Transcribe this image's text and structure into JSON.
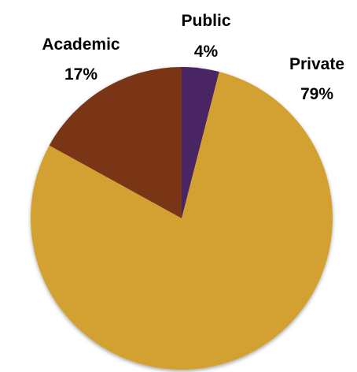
{
  "chart_data": {
    "type": "pie",
    "start_angle_deg": 0,
    "direction": "clockwise",
    "slices": [
      {
        "label": "Public",
        "value": 4,
        "value_label": "4%",
        "color": "#4a2563"
      },
      {
        "label": "Private",
        "value": 79,
        "value_label": "79%",
        "color": "#d3a130"
      },
      {
        "label": "Academic",
        "value": 17,
        "value_label": "17%",
        "color": "#7a3419"
      }
    ]
  }
}
